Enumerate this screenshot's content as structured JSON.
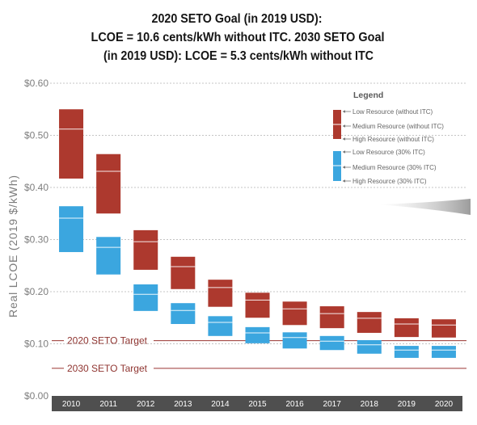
{
  "chart_data": {
    "type": "bar",
    "title": [
      "2020 SETO Goal (in 2019 USD):",
      "LCOE = 10.6 cents/kWh without ITC. 2030 SETO Goal",
      "(in 2019 USD): LCOE = 5.3 cents/kWh without ITC"
    ],
    "xlabel": "",
    "ylabel": "Real LCOE (2019 $/kWh)",
    "ylim": [
      0,
      0.6
    ],
    "yticks": [
      0,
      0.1,
      0.2,
      0.3,
      0.4,
      0.5,
      0.6
    ],
    "ytick_labels": [
      "$0.00",
      "$0.10",
      "$0.20",
      "$0.30",
      "$0.40",
      "$0.50",
      "$0.60"
    ],
    "grid": true,
    "categories": [
      "2010",
      "2011",
      "2012",
      "2013",
      "2014",
      "2015",
      "2016",
      "2017",
      "2018",
      "2019",
      "2020"
    ],
    "series": [
      {
        "color": "#ad392e",
        "low_resource": [
          0.55,
          0.464,
          0.318,
          0.267,
          0.223,
          0.198,
          0.181,
          0.172,
          0.161,
          0.149,
          0.147
        ],
        "medium_resource": [
          0.512,
          0.431,
          0.296,
          0.248,
          0.208,
          0.184,
          0.167,
          0.158,
          0.149,
          0.138,
          0.136
        ],
        "high_resource": [
          0.417,
          0.35,
          0.242,
          0.205,
          0.171,
          0.15,
          0.136,
          0.13,
          0.121,
          0.113,
          0.112
        ]
      },
      {
        "color": "#3ba6df",
        "low_resource": [
          0.364,
          0.305,
          0.214,
          0.178,
          0.153,
          0.132,
          0.122,
          0.115,
          0.107,
          0.096,
          0.096
        ],
        "medium_resource": [
          0.341,
          0.285,
          0.195,
          0.164,
          0.141,
          0.121,
          0.112,
          0.105,
          0.098,
          0.088,
          0.088
        ],
        "high_resource": [
          0.276,
          0.233,
          0.163,
          0.138,
          0.115,
          0.101,
          0.091,
          0.088,
          0.081,
          0.073,
          0.073
        ]
      }
    ],
    "legend": {
      "title": "Legend",
      "placement": "top-right",
      "groups": [
        {
          "labels": [
            "Low Resource (without ITC)",
            "Medium Resource (without ITC)",
            "High Resource (without ITC)"
          ]
        },
        {
          "labels": [
            "Low Resource (30% ITC)",
            "Medium Resource (30% ITC)",
            "High Resource (30% ITC)"
          ]
        }
      ]
    },
    "reference_lines": [
      {
        "label": "2020 SETO Target",
        "value": 0.106,
        "color": "#9a3530"
      },
      {
        "label": "2030 SETO Target",
        "value": 0.053,
        "color": "#9a3530"
      }
    ],
    "colors": {
      "x_axis_band": "#4f4f4f",
      "medium_marker": "#ffffff"
    }
  }
}
